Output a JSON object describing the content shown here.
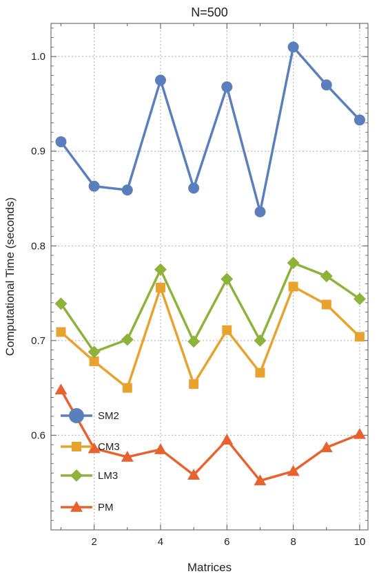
{
  "chart_data": {
    "type": "line",
    "title": "N=500",
    "xlabel": "Matrices",
    "ylabel": "Computational Time (seconds)",
    "xlim": [
      0.7,
      10.25
    ],
    "ylim": [
      0.5,
      1.035
    ],
    "x_ticks": [
      2,
      4,
      6,
      8,
      10
    ],
    "x_tick_labels": [
      "2",
      "4",
      "6",
      "8",
      "10"
    ],
    "y_ticks": [
      0.6,
      0.7,
      0.8,
      0.9,
      1.0
    ],
    "y_tick_labels": [
      "0.6",
      "0.7",
      "0.8",
      "0.9",
      "1.0"
    ],
    "grid": true,
    "legend_position": "bottom-left",
    "x": [
      1,
      2,
      3,
      4,
      5,
      6,
      7,
      8,
      9,
      10
    ],
    "series": [
      {
        "name": "SM2",
        "marker": "circle",
        "color": "#5b7fbd",
        "values": [
          0.91,
          0.863,
          0.859,
          0.975,
          0.861,
          0.968,
          0.836,
          1.01,
          0.97,
          0.933
        ]
      },
      {
        "name": "CM3",
        "marker": "square",
        "color": "#e8a22e",
        "values": [
          0.709,
          0.678,
          0.65,
          0.756,
          0.654,
          0.711,
          0.666,
          0.757,
          0.738,
          0.704
        ]
      },
      {
        "name": "LM3",
        "marker": "diamond",
        "color": "#8db33b",
        "values": [
          0.739,
          0.688,
          0.701,
          0.775,
          0.699,
          0.765,
          0.7,
          0.782,
          0.768,
          0.744
        ]
      },
      {
        "name": "PM",
        "marker": "triangle",
        "color": "#e8622f",
        "values": [
          0.648,
          0.586,
          0.577,
          0.585,
          0.558,
          0.595,
          0.552,
          0.562,
          0.587,
          0.601
        ]
      }
    ]
  }
}
